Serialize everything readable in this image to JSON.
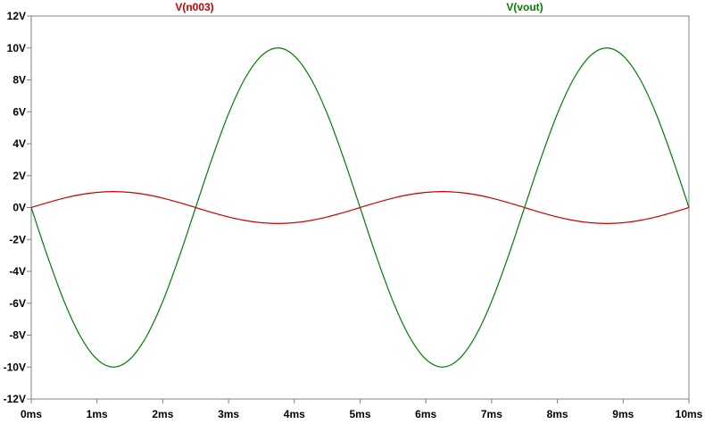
{
  "chart_data": {
    "type": "line",
    "title": "",
    "xlabel": "",
    "ylabel": "",
    "xlim": [
      0,
      10
    ],
    "ylim": [
      -12,
      12
    ],
    "x_ticks": [
      {
        "value": 0,
        "label": "0ms"
      },
      {
        "value": 1,
        "label": "1ms"
      },
      {
        "value": 2,
        "label": "2ms"
      },
      {
        "value": 3,
        "label": "3ms"
      },
      {
        "value": 4,
        "label": "4ms"
      },
      {
        "value": 5,
        "label": "5ms"
      },
      {
        "value": 6,
        "label": "6ms"
      },
      {
        "value": 7,
        "label": "7ms"
      },
      {
        "value": 8,
        "label": "8ms"
      },
      {
        "value": 9,
        "label": "9ms"
      },
      {
        "value": 10,
        "label": "10ms"
      }
    ],
    "y_ticks": [
      {
        "value": 12,
        "label": "12V"
      },
      {
        "value": 10,
        "label": "10V"
      },
      {
        "value": 8,
        "label": "8V"
      },
      {
        "value": 6,
        "label": "6V"
      },
      {
        "value": 4,
        "label": "4V"
      },
      {
        "value": 2,
        "label": "2V"
      },
      {
        "value": 0,
        "label": "0V"
      },
      {
        "value": -2,
        "label": "-2V"
      },
      {
        "value": -4,
        "label": "-4V"
      },
      {
        "value": -6,
        "label": "-6V"
      },
      {
        "value": -8,
        "label": "-8V"
      },
      {
        "value": -10,
        "label": "-10V"
      },
      {
        "value": -12,
        "label": "-12V"
      }
    ],
    "grid": false,
    "legend_position": "top",
    "series": [
      {
        "name": "V(n003)",
        "color": "#cc0000",
        "x": [
          0,
          0.25,
          0.5,
          0.75,
          1,
          1.25,
          1.5,
          1.75,
          2,
          2.25,
          2.5,
          2.75,
          3,
          3.25,
          3.5,
          3.75,
          4,
          4.25,
          4.5,
          4.75,
          5,
          5.25,
          5.5,
          5.75,
          6,
          6.25,
          6.5,
          6.75,
          7,
          7.25,
          7.5,
          7.75,
          8,
          8.25,
          8.5,
          8.75,
          9,
          9.25,
          9.5,
          9.75,
          10
        ],
        "y": [
          0,
          0.31,
          0.59,
          0.81,
          0.95,
          1.0,
          0.95,
          0.81,
          0.59,
          0.31,
          0,
          -0.31,
          -0.59,
          -0.81,
          -0.95,
          -1.0,
          -0.95,
          -0.81,
          -0.59,
          -0.31,
          0,
          0.31,
          0.59,
          0.81,
          0.95,
          1.0,
          0.95,
          0.81,
          0.59,
          0.31,
          0,
          -0.31,
          -0.59,
          -0.81,
          -0.95,
          -1.0,
          -0.95,
          -0.81,
          -0.59,
          -0.31,
          0
        ]
      },
      {
        "name": "V(vout)",
        "color": "#007f00",
        "x": [
          0,
          0.25,
          0.5,
          0.75,
          1,
          1.25,
          1.5,
          1.75,
          2,
          2.25,
          2.5,
          2.75,
          3,
          3.25,
          3.5,
          3.75,
          4,
          4.25,
          4.5,
          4.75,
          5,
          5.25,
          5.5,
          5.75,
          6,
          6.25,
          6.5,
          6.75,
          7,
          7.25,
          7.5,
          7.75,
          8,
          8.25,
          8.5,
          8.75,
          9,
          9.25,
          9.5,
          9.75,
          10
        ],
        "y": [
          0,
          -3.09,
          -5.88,
          -8.09,
          -9.51,
          -10.0,
          -9.51,
          -8.09,
          -5.88,
          -3.09,
          0,
          3.09,
          5.88,
          8.09,
          9.51,
          10.0,
          9.51,
          8.09,
          5.88,
          3.09,
          0,
          -3.09,
          -5.88,
          -8.09,
          -9.51,
          -10.0,
          -9.51,
          -8.09,
          -5.88,
          -3.09,
          0,
          3.09,
          5.88,
          8.09,
          9.51,
          10.0,
          9.51,
          8.09,
          5.88,
          3.09,
          0
        ]
      }
    ]
  }
}
